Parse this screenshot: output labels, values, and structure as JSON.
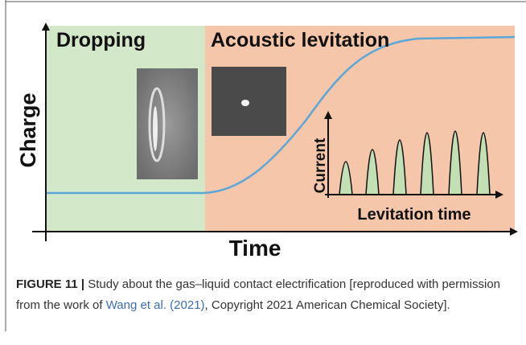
{
  "figure": {
    "panels": {
      "left": "Dropping",
      "right": "Acoustic levitation"
    },
    "axes": {
      "y": "Charge",
      "x": "Time"
    },
    "inset": {
      "y": "Current",
      "x": "Levitation time"
    },
    "caption": {
      "label": "FIGURE 11 |",
      "text_before": " Study about the gas–liquid contact electrification [reproduced with permission from the work of ",
      "reference": "Wang et al. (2021)",
      "text_after": ", Copyright 2021 American Chemical Society]."
    }
  }
}
